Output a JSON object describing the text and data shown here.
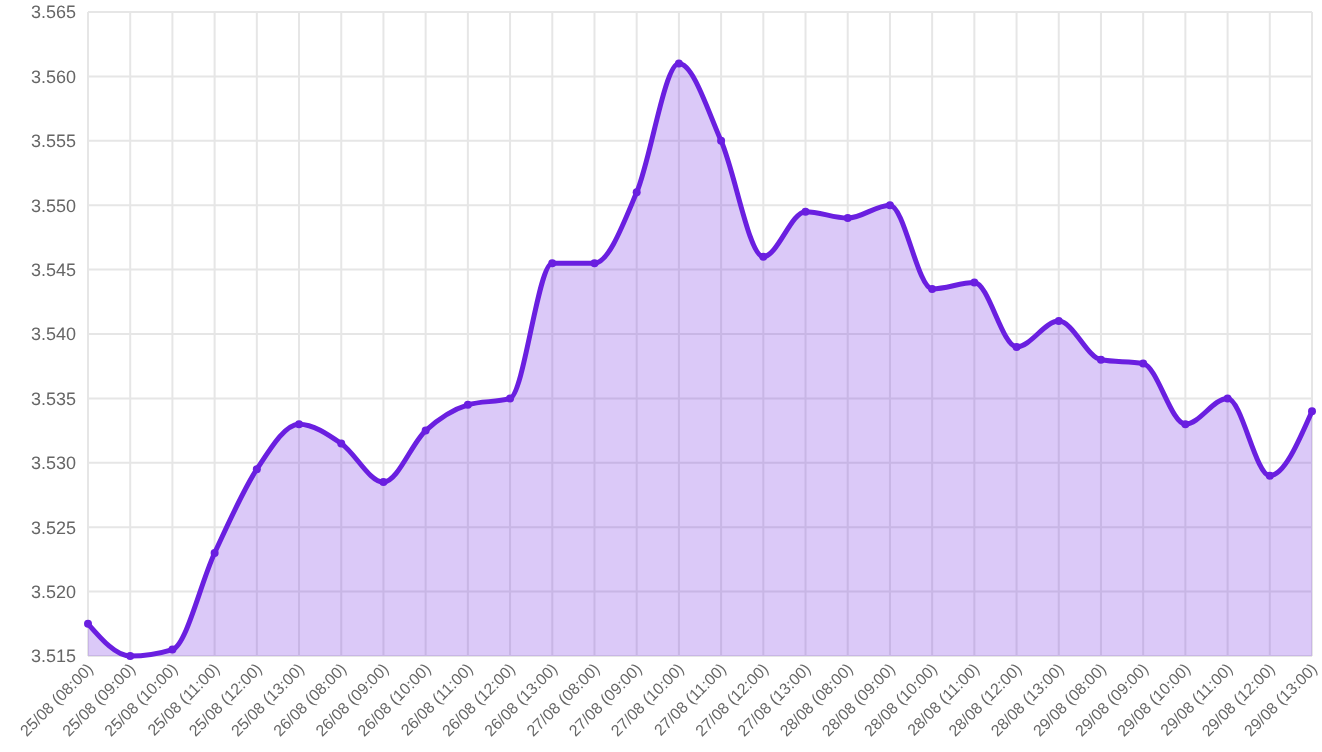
{
  "chart_data": {
    "type": "area",
    "categories": [
      "25/08 (08:00)",
      "25/08 (09:00)",
      "25/08 (10:00)",
      "25/08 (11:00)",
      "25/08 (12:00)",
      "25/08 (13:00)",
      "26/08 (08:00)",
      "26/08 (09:00)",
      "26/08 (10:00)",
      "26/08 (11:00)",
      "26/08 (12:00)",
      "26/08 (13:00)",
      "27/08 (08:00)",
      "27/08 (09:00)",
      "27/08 (10:00)",
      "27/08 (11:00)",
      "27/08 (12:00)",
      "27/08 (13:00)",
      "28/08 (08:00)",
      "28/08 (09:00)",
      "28/08 (10:00)",
      "28/08 (11:00)",
      "28/08 (12:00)",
      "28/08 (13:00)",
      "29/08 (08:00)",
      "29/08 (09:00)",
      "29/08 (10:00)",
      "29/08 (11:00)",
      "29/08 (12:00)",
      "29/08 (13:00)"
    ],
    "series": [
      {
        "color": "#6a1fe0",
        "values": [
          3.5175,
          3.515,
          3.5155,
          3.523,
          3.5295,
          3.533,
          3.5315,
          3.5285,
          3.5325,
          3.5345,
          3.535,
          3.5455,
          3.5455,
          3.551,
          3.561,
          3.555,
          3.546,
          3.5495,
          3.549,
          3.55,
          3.5435,
          3.544,
          3.539,
          3.541,
          3.538,
          3.5377,
          3.533,
          3.535,
          3.529,
          3.534
        ]
      }
    ],
    "ylim": [
      3.515,
      3.565
    ],
    "yticks": [
      3.515,
      {
        "value": 3.52,
        "label": "3.520"
      },
      3.525,
      {
        "value": 3.53,
        "label": "3.530"
      },
      3.535,
      {
        "value": 3.54,
        "label": "3.540"
      },
      3.545,
      {
        "value": 3.55,
        "label": "3.550"
      },
      3.555,
      {
        "value": 3.56,
        "label": "3.560"
      },
      3.565
    ],
    "grid": true,
    "marker": "circle"
  }
}
